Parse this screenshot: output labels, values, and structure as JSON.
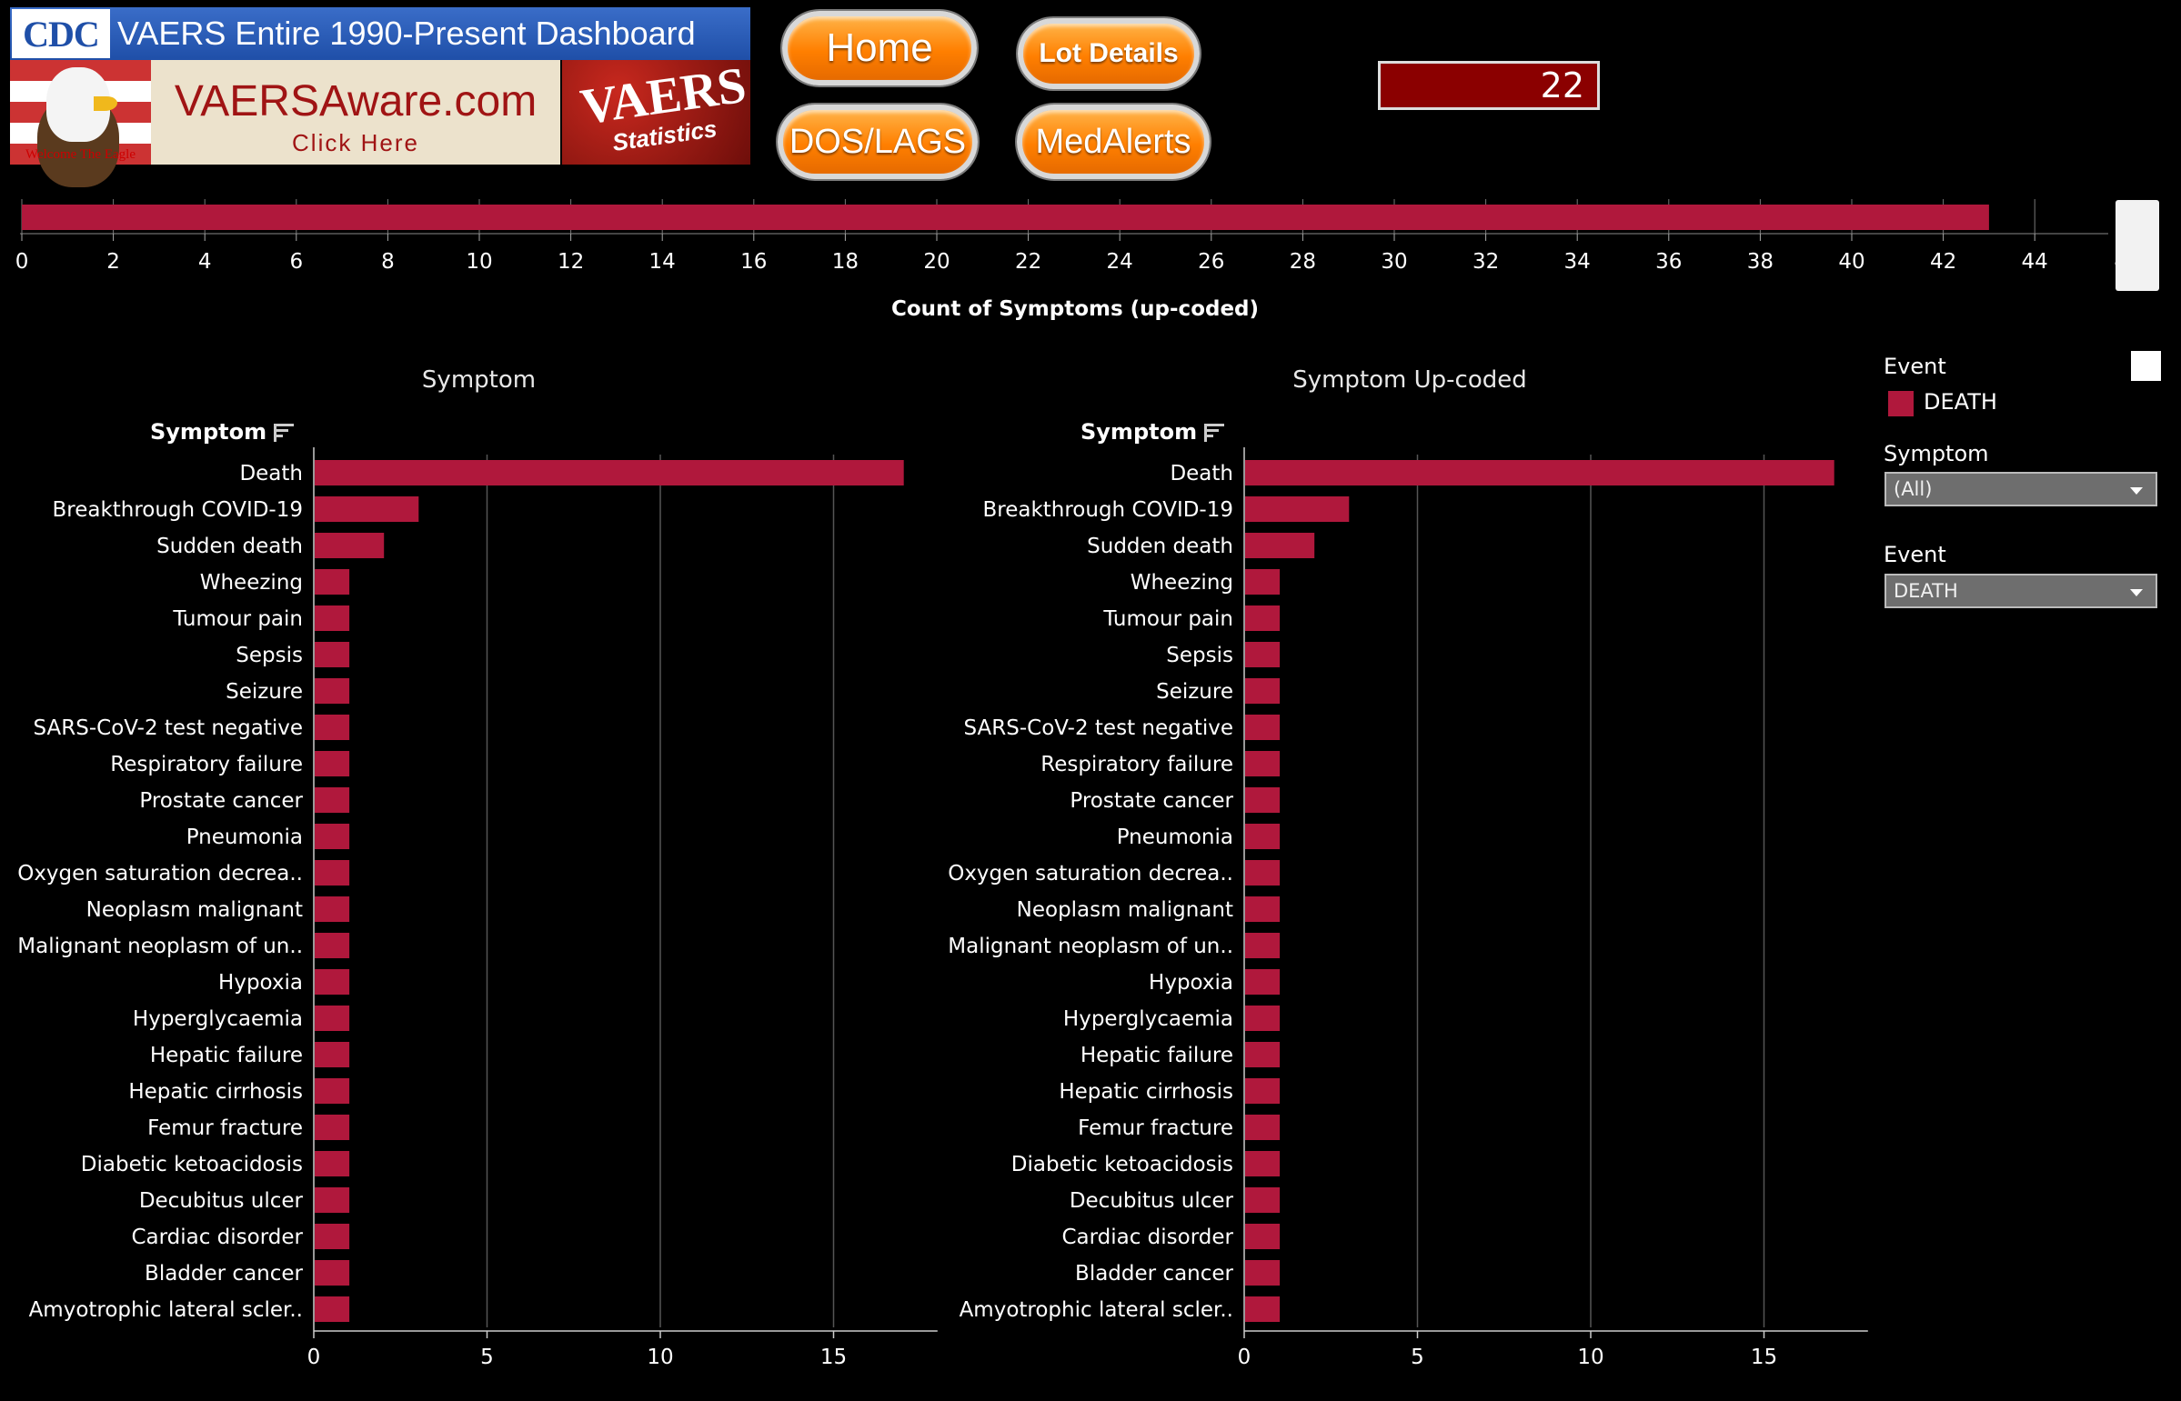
{
  "header": {
    "cdc_logo": "CDC",
    "title": "VAERS Entire 1990-Present Dashboard",
    "eagle_caption": "Welcome The Eagle",
    "vaersaware_big": "VAERSAware.com",
    "vaersaware_small": "Click Here",
    "stats_big": "VAERS",
    "stats_small": "Statistics"
  },
  "nav": {
    "home": "Home",
    "lot_details": "Lot Details",
    "dos_lags": "DOS/LAGS",
    "medalerts": "MedAlerts"
  },
  "count_value": "22",
  "colors": {
    "bar": "#b0183c",
    "background": "#000000",
    "button": "#ff7f00"
  },
  "slider": {
    "axis_title": "Count of Symptoms (up-coded)",
    "ticks": [
      0,
      2,
      4,
      6,
      8,
      10,
      12,
      14,
      16,
      18,
      20,
      22,
      24,
      26,
      28,
      30,
      32,
      34,
      36,
      38,
      40,
      42,
      44
    ],
    "clipped_tick": "4",
    "max": 46,
    "value": 43
  },
  "chart_data": [
    {
      "type": "bar",
      "orientation": "horizontal",
      "title": "Symptom",
      "row_header": "Symptom",
      "xlim": [
        0,
        18
      ],
      "xticks": [
        0,
        5,
        10,
        15
      ],
      "categories": [
        "Death",
        "Breakthrough COVID-19",
        "Sudden death",
        "Wheezing",
        "Tumour pain",
        "Sepsis",
        "Seizure",
        "SARS-CoV-2 test negative",
        "Respiratory failure",
        "Prostate cancer",
        "Pneumonia",
        "Oxygen saturation decrea..",
        "Neoplasm malignant",
        "Malignant neoplasm of un..",
        "Hypoxia",
        "Hyperglycaemia",
        "Hepatic failure",
        "Hepatic cirrhosis",
        "Femur fracture",
        "Diabetic ketoacidosis",
        "Decubitus ulcer",
        "Cardiac disorder",
        "Bladder cancer",
        "Amyotrophic lateral scler.."
      ],
      "values": [
        17,
        3,
        2,
        1,
        1,
        1,
        1,
        1,
        1,
        1,
        1,
        1,
        1,
        1,
        1,
        1,
        1,
        1,
        1,
        1,
        1,
        1,
        1,
        1
      ],
      "grid": "vertical"
    },
    {
      "type": "bar",
      "orientation": "horizontal",
      "title": "Symptom Up-coded",
      "row_header": "Symptom",
      "xlim": [
        0,
        18
      ],
      "xticks": [
        0,
        5,
        10,
        15
      ],
      "categories": [
        "Death",
        "Breakthrough COVID-19",
        "Sudden death",
        "Wheezing",
        "Tumour pain",
        "Sepsis",
        "Seizure",
        "SARS-CoV-2 test negative",
        "Respiratory failure",
        "Prostate cancer",
        "Pneumonia",
        "Oxygen saturation decrea..",
        "Neoplasm malignant",
        "Malignant neoplasm of un..",
        "Hypoxia",
        "Hyperglycaemia",
        "Hepatic failure",
        "Hepatic cirrhosis",
        "Femur fracture",
        "Diabetic ketoacidosis",
        "Decubitus ulcer",
        "Cardiac disorder",
        "Bladder cancer",
        "Amyotrophic lateral scler.."
      ],
      "values": [
        17,
        3,
        2,
        1,
        1,
        1,
        1,
        1,
        1,
        1,
        1,
        1,
        1,
        1,
        1,
        1,
        1,
        1,
        1,
        1,
        1,
        1,
        1,
        1
      ],
      "grid": "vertical"
    }
  ],
  "filters": {
    "legend_title": "Event",
    "legend_item": "DEATH",
    "symptom_label": "Symptom",
    "symptom_value": "(All)",
    "event_label": "Event",
    "event_value": "DEATH"
  }
}
